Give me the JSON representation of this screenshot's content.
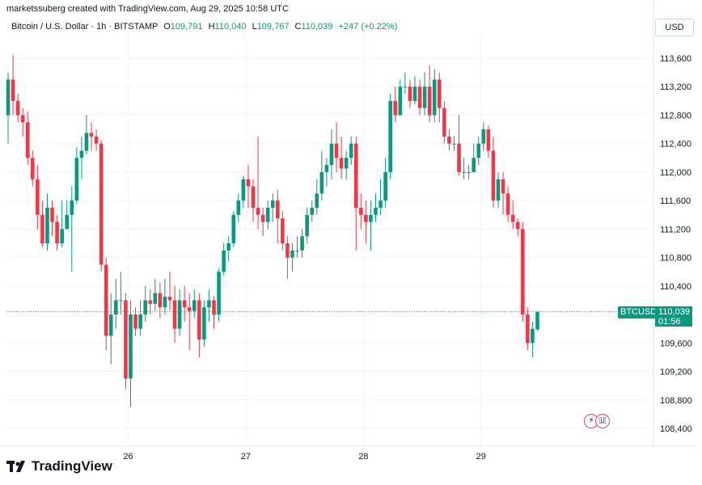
{
  "header": {
    "attribution": "marketssuberg created with TradingView.com, Aug 29, 2025 10:58 UTC",
    "symbol": "Bitcoin / U.S. Dollar · 1h · BITSTAMP",
    "open_label": "O",
    "open": "109,791",
    "high_label": "H",
    "high": "110,040",
    "low_label": "L",
    "low": "109,767",
    "close_label": "C",
    "close": "110,039",
    "change": "+247 (+0.22%)",
    "currency": "USD"
  },
  "price_tag": {
    "ticker": "BTCUSD",
    "price": "110,039",
    "countdown": "01:56"
  },
  "brand": {
    "name": "TradingView"
  },
  "colors": {
    "up": "#089981",
    "down": "#f23645",
    "grid": "#f0f3fa",
    "axis": "#e0e3eb"
  },
  "chart_data": {
    "type": "candlestick",
    "interval": "1h",
    "y_axis_labels": [
      "113,600",
      "113,200",
      "112,800",
      "112,400",
      "112,000",
      "111,600",
      "111,200",
      "110,800",
      "110,400",
      "109,600",
      "109,200",
      "108,800",
      "108,400"
    ],
    "y_ticks": [
      113600,
      113200,
      112800,
      112400,
      112000,
      111600,
      111200,
      110800,
      110400,
      109600,
      109200,
      108800,
      108400
    ],
    "ylim": [
      108150,
      113850
    ],
    "x_axis_labels": [
      "26",
      "27",
      "28",
      "29"
    ],
    "x_label_index": [
      24.5,
      48.5,
      72.5,
      96.5
    ],
    "last_price": 110039,
    "candles": [
      [
        112800,
        113300,
        113400,
        112400
      ],
      [
        113300,
        113000,
        113650,
        112800
      ],
      [
        113000,
        112800,
        113100,
        112700
      ],
      [
        112800,
        112700,
        112900,
        112500
      ],
      [
        112700,
        112200,
        112850,
        112100
      ],
      [
        112200,
        111900,
        112300,
        111800
      ],
      [
        111900,
        111400,
        112100,
        111200
      ],
      [
        111400,
        111000,
        111600,
        110950
      ],
      [
        111000,
        111500,
        111700,
        110900
      ],
      [
        111500,
        111300,
        111600,
        111100
      ],
      [
        111300,
        111000,
        111400,
        110900
      ],
      [
        111000,
        111200,
        111600,
        110950
      ],
      [
        111200,
        111400,
        111600,
        111200
      ],
      [
        111400,
        111600,
        111800,
        110600
      ],
      [
        111600,
        112200,
        112350,
        111550
      ],
      [
        112200,
        112300,
        112500,
        111900
      ],
      [
        112300,
        112550,
        112800,
        112250
      ],
      [
        112550,
        112500,
        112700,
        112300
      ],
      [
        112500,
        112400,
        112600,
        112300
      ],
      [
        112400,
        110700,
        112450,
        110600
      ],
      [
        110700,
        109700,
        110800,
        109500
      ],
      [
        109700,
        110000,
        110300,
        109300
      ],
      [
        110000,
        110200,
        110500,
        109800
      ],
      [
        110200,
        110200,
        110600,
        110000
      ],
      [
        110200,
        109100,
        110300,
        108950
      ],
      [
        109100,
        110000,
        110200,
        108700
      ],
      [
        110000,
        109800,
        110100,
        109700
      ],
      [
        109800,
        110000,
        110200,
        109700
      ],
      [
        110000,
        110200,
        110400,
        109900
      ],
      [
        110200,
        110150,
        110350,
        110000
      ],
      [
        110150,
        110300,
        110500,
        110050
      ],
      [
        110300,
        110100,
        110450,
        109950
      ],
      [
        110100,
        110250,
        110500,
        110000
      ],
      [
        110250,
        110200,
        110600,
        110050
      ],
      [
        110200,
        109800,
        110400,
        109600
      ],
      [
        109800,
        110200,
        110350,
        109700
      ],
      [
        110200,
        110100,
        110400,
        109900
      ],
      [
        110100,
        110050,
        110300,
        109500
      ],
      [
        110050,
        110200,
        110350,
        109950
      ],
      [
        110200,
        109650,
        110300,
        109400
      ],
      [
        109650,
        110100,
        110200,
        109550
      ],
      [
        110100,
        110200,
        110350,
        109900
      ],
      [
        110200,
        110000,
        110250,
        109800
      ],
      [
        110000,
        110600,
        110650,
        109900
      ],
      [
        110600,
        110900,
        111000,
        110550
      ],
      [
        110900,
        111000,
        111100,
        110750
      ],
      [
        111000,
        111400,
        111450,
        110950
      ],
      [
        111400,
        111600,
        111700,
        111300
      ],
      [
        111600,
        111900,
        111950,
        111500
      ],
      [
        111900,
        111800,
        112100,
        111500
      ],
      [
        111800,
        111500,
        111900,
        111300
      ],
      [
        111500,
        111400,
        112500,
        111200
      ],
      [
        111400,
        111300,
        111500,
        111100
      ],
      [
        111300,
        111500,
        111600,
        111200
      ],
      [
        111500,
        111600,
        111700,
        111300
      ],
      [
        111600,
        111350,
        111750,
        111000
      ],
      [
        111350,
        111000,
        111450,
        110900
      ],
      [
        111000,
        110800,
        111100,
        110500
      ],
      [
        110800,
        110900,
        111000,
        110600
      ],
      [
        110900,
        110900,
        111100,
        110800
      ],
      [
        110900,
        111100,
        111200,
        110800
      ],
      [
        111100,
        111400,
        111500,
        111000
      ],
      [
        111400,
        111500,
        111600,
        111300
      ],
      [
        111500,
        111700,
        111900,
        111400
      ],
      [
        111700,
        112000,
        112300,
        111600
      ],
      [
        112000,
        112100,
        112200,
        111800
      ],
      [
        112100,
        112400,
        112600,
        111900
      ],
      [
        112400,
        112200,
        112700,
        112000
      ],
      [
        112200,
        112050,
        112500,
        111900
      ],
      [
        112050,
        112200,
        112300,
        111900
      ],
      [
        112200,
        112400,
        112500,
        112100
      ],
      [
        112400,
        111500,
        112500,
        110900
      ],
      [
        111500,
        111400,
        111700,
        111200
      ],
      [
        111400,
        111300,
        111600,
        111000
      ],
      [
        111300,
        111400,
        111600,
        110900
      ],
      [
        111400,
        111500,
        111700,
        111300
      ],
      [
        111500,
        111600,
        111900,
        111400
      ],
      [
        111600,
        112000,
        112200,
        111500
      ],
      [
        112000,
        113000,
        113100,
        111900
      ],
      [
        113000,
        112800,
        113200,
        112700
      ],
      [
        112800,
        113200,
        113300,
        112800
      ],
      [
        113200,
        113200,
        113400,
        113100
      ],
      [
        113200,
        113000,
        113300,
        112900
      ],
      [
        113000,
        113200,
        113350,
        112950
      ],
      [
        113200,
        112900,
        113300,
        112800
      ],
      [
        112900,
        113200,
        113400,
        112800
      ],
      [
        113200,
        112800,
        113500,
        112700
      ],
      [
        112800,
        113300,
        113450,
        112700
      ],
      [
        113300,
        112900,
        113400,
        112700
      ],
      [
        112900,
        112500,
        113000,
        112400
      ],
      [
        112500,
        112400,
        112600,
        112300
      ],
      [
        112400,
        112400,
        112500,
        112300
      ],
      [
        112400,
        112000,
        112800,
        111950
      ],
      [
        112000,
        112000,
        112200,
        111900
      ],
      [
        112000,
        112000,
        112100,
        111900
      ],
      [
        112000,
        112200,
        112400,
        112000
      ],
      [
        112200,
        112400,
        112500,
        112100
      ],
      [
        112400,
        112600,
        112700,
        112300
      ],
      [
        112600,
        112300,
        112650,
        112200
      ],
      [
        112300,
        111600,
        112500,
        111500
      ],
      [
        111600,
        111900,
        112000,
        111500
      ],
      [
        111900,
        111700,
        112000,
        111400
      ],
      [
        111700,
        111400,
        111800,
        111300
      ],
      [
        111400,
        111300,
        111600,
        111200
      ],
      [
        111300,
        111200,
        111350,
        111100
      ],
      [
        111200,
        110000,
        111300,
        109900
      ],
      [
        110000,
        109600,
        110100,
        109500
      ],
      [
        109600,
        109800,
        109900,
        109400
      ],
      [
        109791,
        110039,
        110040,
        109767
      ]
    ]
  }
}
